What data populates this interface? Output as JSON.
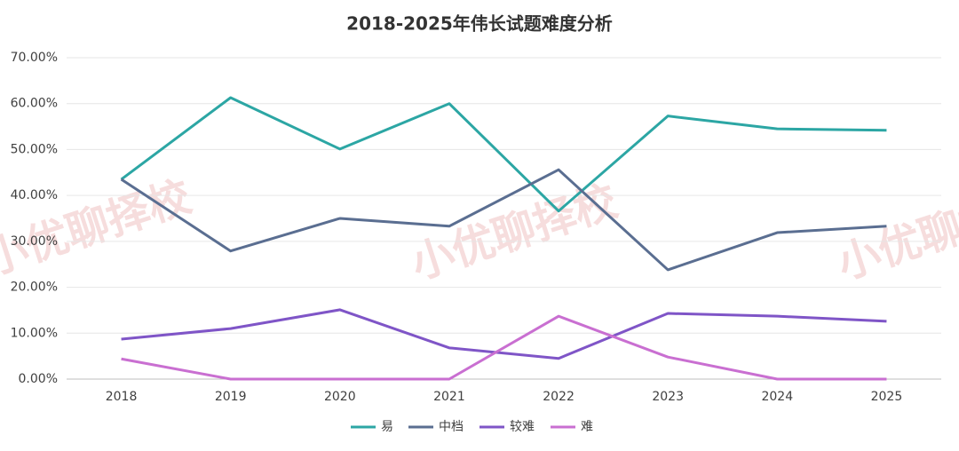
{
  "chart_data": {
    "type": "line",
    "title": "2018-2025年伟长试题难度分析",
    "watermark": "小优聊择校",
    "categories": [
      "2018",
      "2019",
      "2020",
      "2021",
      "2022",
      "2023",
      "2024",
      "2025"
    ],
    "series": [
      {
        "name": "易",
        "color": "#2ca6a4",
        "values": [
          43.5,
          61.3,
          50.1,
          60.0,
          36.6,
          57.3,
          54.5,
          54.2
        ]
      },
      {
        "name": "中档",
        "color": "#5a6e91",
        "values": [
          43.5,
          27.9,
          35.0,
          33.3,
          45.6,
          23.8,
          31.9,
          33.3
        ]
      },
      {
        "name": "较难",
        "color": "#7f55c7",
        "values": [
          8.7,
          11.0,
          15.1,
          6.8,
          4.5,
          14.3,
          13.7,
          12.6
        ]
      },
      {
        "name": "难",
        "color": "#c96fd1",
        "values": [
          4.4,
          0,
          0,
          0,
          13.7,
          4.8,
          0,
          0
        ]
      }
    ],
    "ylim": [
      0,
      70
    ],
    "yticks": [
      {
        "value": 0,
        "label": "0.00%"
      },
      {
        "value": 10,
        "label": "10.00%"
      },
      {
        "value": 20,
        "label": "20.00%"
      },
      {
        "value": 30,
        "label": "30.00%"
      },
      {
        "value": 40,
        "label": "40.00%"
      },
      {
        "value": 50,
        "label": "50.00%"
      },
      {
        "value": 60,
        "label": "60.00%"
      },
      {
        "value": 70,
        "label": "70.00%"
      }
    ],
    "grid": true,
    "legend": "bottom"
  }
}
